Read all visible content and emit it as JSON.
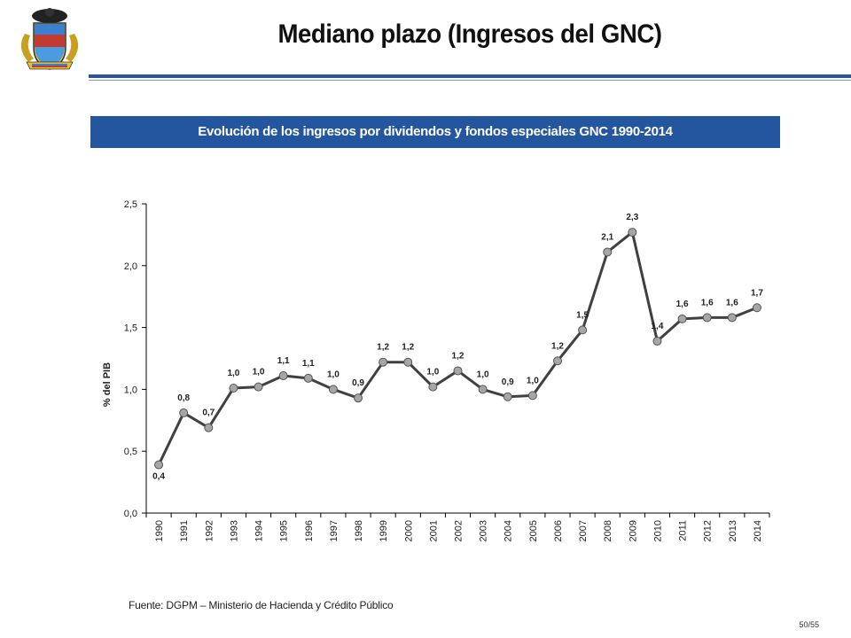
{
  "header": {
    "title": "Mediano plazo (Ingresos del GNC)"
  },
  "chart_banner": "Evolución de los ingresos por dividendos y fondos especiales GNC 1990-2014",
  "colors": {
    "accent": "#2456a0",
    "rule": "#2f5496",
    "line": "#404040",
    "marker_fill": "#a6a6a6"
  },
  "chart_data": {
    "type": "line",
    "title": "Evolución de los ingresos por dividendos y fondos especiales GNC 1990-2014",
    "xlabel": "",
    "ylabel": "% del PIB",
    "ylim": [
      0,
      2.5
    ],
    "yticks": [
      "0,0",
      "0,5",
      "1,0",
      "1,5",
      "2,0",
      "2,5"
    ],
    "ytick_values": [
      0,
      0.5,
      1.0,
      1.5,
      2.0,
      2.5
    ],
    "grid": false,
    "legend": "none",
    "categories": [
      "1990",
      "1991",
      "1992",
      "1993",
      "1994",
      "1995",
      "1996",
      "1997",
      "1998",
      "1999",
      "2000",
      "2001",
      "2002",
      "2003",
      "2004",
      "2005",
      "2006",
      "2007",
      "2008",
      "2009",
      "2010",
      "2011",
      "2012",
      "2013",
      "2014"
    ],
    "series": [
      {
        "values": [
          0.39,
          0.81,
          0.69,
          1.01,
          1.02,
          1.11,
          1.09,
          1.0,
          0.93,
          1.22,
          1.22,
          1.02,
          1.15,
          1.0,
          0.94,
          0.95,
          1.23,
          1.48,
          2.11,
          2.27,
          1.39,
          1.57,
          1.58,
          1.58,
          1.66
        ],
        "labels": [
          "0,4",
          "0,8",
          "0,7",
          "1,0",
          "1,0",
          "1,1",
          "1,1",
          "1,0",
          "0,9",
          "1,2",
          "1,2",
          "1,0",
          "1,2",
          "1,0",
          "0,9",
          "1,0",
          "1,2",
          "1,5",
          "2,1",
          "2,3",
          "1,4",
          "1,6",
          "1,6",
          "1,6",
          "1,7"
        ]
      }
    ]
  },
  "footer": {
    "source": "Fuente: DGPM – Ministerio de Hacienda y Crédito Público",
    "page": "50/55"
  }
}
